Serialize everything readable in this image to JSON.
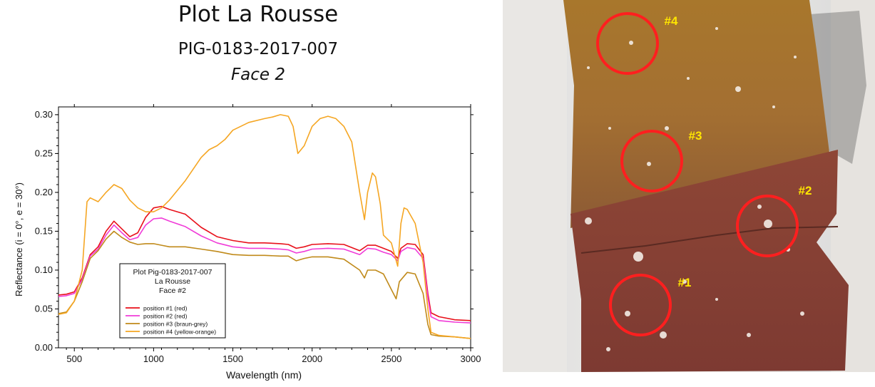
{
  "header": {
    "title": "Plot La Rousse",
    "sample_id": "PIG-0183-2017-007",
    "face": "Face 2"
  },
  "chart_data": {
    "type": "line",
    "xlabel": "Wavelength (nm)",
    "ylabel": "Reflectance (i = 0°, e = 30°)",
    "xlim": [
      400,
      3000
    ],
    "ylim": [
      0.0,
      0.31
    ],
    "xticks": [
      500,
      1000,
      1500,
      2000,
      2500,
      3000
    ],
    "yticks": [
      0.0,
      0.05,
      0.1,
      0.15,
      0.2,
      0.25,
      0.3
    ],
    "xtick_labels": [
      "500",
      "1000",
      "1500",
      "2000",
      "2500",
      "3000"
    ],
    "ytick_labels": [
      "0.00",
      "0.05",
      "0.10",
      "0.15",
      "0.20",
      "0.25",
      "0.30"
    ],
    "grid": false,
    "legend": {
      "title_lines": [
        "Plot Pig-0183-2017-007",
        "La Rousse",
        "Face #2"
      ],
      "placement": "bottom-center"
    },
    "series": [
      {
        "name": "position #1 (red)",
        "color": "#e8101a",
        "x": [
          400,
          450,
          500,
          550,
          600,
          650,
          700,
          750,
          800,
          850,
          900,
          950,
          1000,
          1050,
          1100,
          1200,
          1300,
          1400,
          1500,
          1600,
          1700,
          1800,
          1850,
          1900,
          1950,
          2000,
          2100,
          2200,
          2300,
          2350,
          2400,
          2450,
          2500,
          2540,
          2560,
          2600,
          2650,
          2700,
          2730,
          2750,
          2800,
          2900,
          3000
        ],
        "y": [
          0.068,
          0.069,
          0.072,
          0.09,
          0.12,
          0.13,
          0.15,
          0.163,
          0.153,
          0.143,
          0.148,
          0.168,
          0.18,
          0.182,
          0.178,
          0.172,
          0.155,
          0.143,
          0.138,
          0.135,
          0.135,
          0.134,
          0.133,
          0.128,
          0.13,
          0.133,
          0.134,
          0.133,
          0.125,
          0.132,
          0.132,
          0.128,
          0.124,
          0.115,
          0.128,
          0.134,
          0.133,
          0.12,
          0.07,
          0.045,
          0.04,
          0.036,
          0.035
        ]
      },
      {
        "name": "position #2 (red)",
        "color": "#f03cd8",
        "x": [
          400,
          450,
          500,
          550,
          600,
          650,
          700,
          750,
          800,
          850,
          900,
          950,
          1000,
          1050,
          1100,
          1200,
          1300,
          1400,
          1500,
          1600,
          1700,
          1800,
          1850,
          1900,
          1950,
          2000,
          2100,
          2200,
          2300,
          2350,
          2400,
          2450,
          2500,
          2540,
          2560,
          2600,
          2650,
          2700,
          2730,
          2750,
          2800,
          2900,
          3000
        ],
        "y": [
          0.066,
          0.067,
          0.07,
          0.088,
          0.118,
          0.127,
          0.145,
          0.158,
          0.148,
          0.139,
          0.142,
          0.158,
          0.166,
          0.167,
          0.163,
          0.156,
          0.144,
          0.135,
          0.13,
          0.128,
          0.128,
          0.127,
          0.126,
          0.122,
          0.124,
          0.127,
          0.128,
          0.127,
          0.12,
          0.128,
          0.127,
          0.123,
          0.12,
          0.112,
          0.124,
          0.129,
          0.127,
          0.115,
          0.065,
          0.04,
          0.035,
          0.033,
          0.032
        ]
      },
      {
        "name": "position #3 (braun-grey)",
        "color": "#c08a1a",
        "x": [
          400,
          450,
          500,
          550,
          600,
          650,
          700,
          750,
          800,
          850,
          900,
          950,
          1000,
          1050,
          1100,
          1200,
          1300,
          1400,
          1500,
          1600,
          1700,
          1800,
          1850,
          1900,
          1950,
          2000,
          2100,
          2200,
          2300,
          2330,
          2350,
          2400,
          2450,
          2500,
          2530,
          2550,
          2600,
          2650,
          2700,
          2730,
          2750,
          2800,
          2900,
          3000
        ],
        "y": [
          0.044,
          0.046,
          0.06,
          0.085,
          0.115,
          0.125,
          0.14,
          0.15,
          0.142,
          0.136,
          0.133,
          0.134,
          0.134,
          0.132,
          0.13,
          0.13,
          0.127,
          0.124,
          0.12,
          0.119,
          0.119,
          0.118,
          0.118,
          0.112,
          0.115,
          0.117,
          0.117,
          0.114,
          0.1,
          0.09,
          0.1,
          0.1,
          0.095,
          0.075,
          0.063,
          0.085,
          0.097,
          0.095,
          0.07,
          0.03,
          0.017,
          0.015,
          0.014,
          0.012
        ]
      },
      {
        "name": "position #4 (yellow-orange)",
        "color": "#f5a623",
        "x": [
          400,
          450,
          500,
          550,
          580,
          600,
          650,
          700,
          750,
          800,
          850,
          900,
          950,
          1000,
          1050,
          1100,
          1200,
          1300,
          1350,
          1400,
          1450,
          1500,
          1600,
          1700,
          1750,
          1800,
          1850,
          1880,
          1910,
          1950,
          2000,
          2050,
          2100,
          2150,
          2200,
          2250,
          2300,
          2330,
          2350,
          2380,
          2400,
          2430,
          2450,
          2500,
          2540,
          2560,
          2580,
          2600,
          2650,
          2700,
          2730,
          2750,
          2800,
          2900,
          3000
        ],
        "y": [
          0.043,
          0.045,
          0.06,
          0.1,
          0.188,
          0.193,
          0.188,
          0.2,
          0.21,
          0.205,
          0.19,
          0.18,
          0.175,
          0.175,
          0.18,
          0.19,
          0.215,
          0.245,
          0.255,
          0.26,
          0.268,
          0.28,
          0.29,
          0.295,
          0.297,
          0.3,
          0.298,
          0.285,
          0.25,
          0.26,
          0.285,
          0.295,
          0.298,
          0.295,
          0.285,
          0.265,
          0.2,
          0.165,
          0.2,
          0.225,
          0.22,
          0.185,
          0.145,
          0.135,
          0.105,
          0.16,
          0.18,
          0.178,
          0.16,
          0.11,
          0.05,
          0.02,
          0.016,
          0.014,
          0.012
        ]
      }
    ]
  },
  "photo": {
    "markers": [
      {
        "label": "#1",
        "color": "#ff1f1f",
        "label_color": "#ffe600"
      },
      {
        "label": "#2",
        "color": "#ff1f1f",
        "label_color": "#ffe600"
      },
      {
        "label": "#3",
        "color": "#ff1f1f",
        "label_color": "#ffe600"
      },
      {
        "label": "#4",
        "color": "#ff1f1f",
        "label_color": "#ffe600"
      }
    ]
  }
}
